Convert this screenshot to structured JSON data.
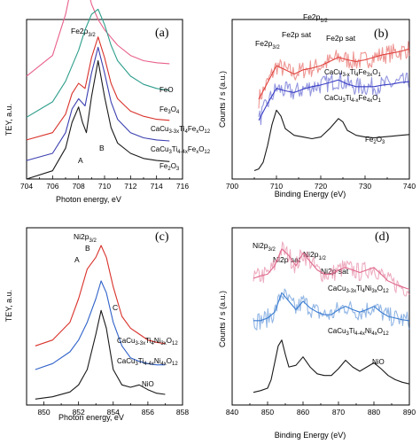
{
  "chart_data": [
    {
      "panel": "(a)",
      "type": "line",
      "title": "Fe2p3/2",
      "xlabel": "Photon energy, eV",
      "ylabel": "TEY, a.u.",
      "xlim": [
        704,
        716
      ],
      "xticks": [
        704,
        706,
        708,
        710,
        712,
        714,
        716
      ],
      "annotations": [
        "A",
        "B"
      ],
      "series": [
        {
          "name": "FeO",
          "color": "#e8608a",
          "x": [
            704,
            706,
            707,
            707.5,
            708,
            708.5,
            709,
            709.5,
            710,
            711,
            712,
            713,
            714,
            715
          ],
          "y": [
            0.25,
            0.45,
            0.85,
            1.15,
            1.35,
            1.2,
            0.95,
            0.8,
            0.7,
            0.55,
            0.45,
            0.4,
            0.38,
            0.37
          ]
        },
        {
          "name": "Fe3O4",
          "color": "#2e9e8c",
          "x": [
            704,
            706,
            707,
            708,
            708.5,
            709,
            709.5,
            710,
            710.5,
            711,
            712,
            713,
            714,
            715
          ],
          "y": [
            0.1,
            0.25,
            0.45,
            0.75,
            0.95,
            1.1,
            1.15,
            1.0,
            0.8,
            0.65,
            0.5,
            0.42,
            0.38,
            0.36
          ]
        },
        {
          "name": "CaCu3-3xTi4FexO12",
          "color": "#d9312a",
          "x": [
            704,
            706,
            707,
            707.5,
            708,
            708.5,
            709,
            709.5,
            710,
            710.5,
            711,
            712,
            713,
            714,
            715
          ],
          "y": [
            0.05,
            0.12,
            0.3,
            0.5,
            0.6,
            0.55,
            0.85,
            1.05,
            0.85,
            0.6,
            0.45,
            0.33,
            0.28,
            0.25,
            0.24
          ]
        },
        {
          "name": "CaCu3Ti4-4xFexO12",
          "color": "#3b3fb0",
          "x": [
            704,
            706,
            707,
            707.5,
            708,
            708.5,
            709,
            709.5,
            710,
            710.5,
            711,
            712,
            713,
            714,
            715
          ],
          "y": [
            0.05,
            0.12,
            0.32,
            0.55,
            0.65,
            0.58,
            0.9,
            1.15,
            0.9,
            0.62,
            0.45,
            0.32,
            0.27,
            0.25,
            0.24
          ]
        },
        {
          "name": "Fe2O3",
          "color": "#1a1a1a",
          "x": [
            704,
            706,
            707,
            707.5,
            708,
            708.3,
            708.6,
            709,
            709.5,
            710,
            710.5,
            711,
            712,
            713,
            714,
            715
          ],
          "y": [
            0.0,
            0.08,
            0.3,
            0.55,
            0.7,
            0.55,
            0.45,
            0.8,
            1.15,
            0.8,
            0.5,
            0.35,
            0.25,
            0.2,
            0.18,
            0.17
          ]
        }
      ]
    },
    {
      "panel": "(b)",
      "type": "line",
      "xlabel": "Binding Energy (eV)",
      "ylabel": "Counts / s (a.u.)",
      "xlim": [
        700,
        740
      ],
      "xticks": [
        700,
        710,
        720,
        730,
        740
      ],
      "annotations": [
        "Fe2p3/2",
        "Fe2p sat",
        "Fe2p1/2",
        "Fe2p sat"
      ],
      "series": [
        {
          "name": "CaCu3-xTi4Fe3xO1",
          "color": "#e0413c",
          "x": [
            706,
            708,
            710,
            712,
            714,
            716,
            718,
            720,
            722,
            724,
            726,
            728,
            730,
            732,
            734,
            736,
            738,
            740
          ],
          "y": [
            0.85,
            1.05,
            1.25,
            1.2,
            1.15,
            1.2,
            1.22,
            1.25,
            1.3,
            1.35,
            1.32,
            1.3,
            1.32,
            1.35,
            1.38,
            1.4,
            1.42,
            1.45
          ]
        },
        {
          "name": "CaCu3Ti4-xFe4xO1",
          "color": "#3a3fc4",
          "x": [
            706,
            708,
            710,
            712,
            714,
            716,
            718,
            720,
            722,
            724,
            726,
            728,
            730,
            732,
            734,
            736,
            738,
            740
          ],
          "y": [
            0.6,
            0.8,
            0.98,
            0.95,
            0.93,
            0.97,
            1.0,
            1.02,
            1.05,
            1.08,
            1.03,
            1.0,
            1.0,
            1.0,
            1.02,
            1.03,
            1.05,
            1.06
          ]
        },
        {
          "name": "Fe2O3",
          "color": "#1a1a1a",
          "x": [
            705,
            706,
            707,
            708,
            709,
            710,
            711,
            712,
            714,
            716,
            718,
            720,
            722,
            724,
            725,
            726,
            728,
            730,
            732,
            734,
            736,
            738,
            740
          ],
          "y": [
            0.0,
            0.02,
            0.1,
            0.3,
            0.55,
            0.72,
            0.65,
            0.5,
            0.42,
            0.4,
            0.38,
            0.4,
            0.5,
            0.62,
            0.58,
            0.48,
            0.42,
            0.4,
            0.39,
            0.4,
            0.41,
            0.42,
            0.43
          ]
        }
      ]
    },
    {
      "panel": "(c)",
      "type": "line",
      "title": "Ni2p3/2",
      "xlabel": "Photon energy, eV",
      "ylabel": "TEY, a.u.",
      "xlim": [
        849,
        858
      ],
      "xticks": [
        850,
        852,
        854,
        856,
        858
      ],
      "annotations": [
        "A",
        "B",
        "C"
      ],
      "series": [
        {
          "name": "CaCu3-3xTi4Ni3xO12",
          "color": "#d9312a",
          "x": [
            849.5,
            850.5,
            851.5,
            852,
            852.5,
            853,
            853.3,
            853.6,
            854,
            854.5,
            855,
            855.5,
            856,
            856.5,
            857
          ],
          "y": [
            0.35,
            0.4,
            0.55,
            0.75,
            1.0,
            1.1,
            1.2,
            1.1,
            0.85,
            0.6,
            0.5,
            0.45,
            0.4,
            0.38,
            0.37
          ]
        },
        {
          "name": "CaCu3Ti4-4xNi4xO12",
          "color": "#2f62c9",
          "x": [
            849.5,
            850.5,
            851.5,
            852,
            852.5,
            853,
            853.3,
            853.6,
            854,
            854.5,
            855,
            855.5,
            856,
            856.5,
            857
          ],
          "y": [
            0.2,
            0.25,
            0.35,
            0.45,
            0.6,
            0.8,
            0.95,
            0.85,
            0.6,
            0.4,
            0.3,
            0.27,
            0.25,
            0.24,
            0.24
          ]
        },
        {
          "name": "NiO",
          "color": "#1a1a1a",
          "x": [
            849.5,
            850.5,
            851.5,
            852,
            852.5,
            853,
            853.3,
            853.6,
            854,
            854.5,
            855,
            855.5,
            856,
            856.5,
            857
          ],
          "y": [
            0.0,
            0.02,
            0.06,
            0.12,
            0.25,
            0.55,
            0.75,
            0.6,
            0.25,
            0.12,
            0.1,
            0.12,
            0.08,
            0.05,
            0.04
          ]
        }
      ]
    },
    {
      "panel": "(d)",
      "type": "line",
      "xlabel": "Binding Energy (eV)",
      "ylabel": "Counts / s (a.u.)",
      "xlim": [
        840,
        890
      ],
      "xticks": [
        840,
        850,
        860,
        870,
        880,
        890
      ],
      "annotations": [
        "Ni2p3/2",
        "Ni2p sat",
        "Ni2p1/2",
        "Ni2p sat"
      ],
      "series": [
        {
          "name": "CaCu3-3xTi4Ni3xO12",
          "color": "#e06a8e",
          "x": [
            846,
            848,
            850,
            852,
            854,
            856,
            858,
            860,
            862,
            864,
            866,
            868,
            870,
            872,
            874,
            876,
            878,
            880,
            882,
            884,
            886,
            888,
            890
          ],
          "y": [
            1.35,
            1.38,
            1.4,
            1.5,
            1.7,
            1.62,
            1.5,
            1.65,
            1.55,
            1.45,
            1.4,
            1.4,
            1.45,
            1.48,
            1.45,
            1.42,
            1.45,
            1.48,
            1.4,
            1.32,
            1.28,
            1.25,
            1.22
          ]
        },
        {
          "name": "CaCu3Ti4-4xNi4xO12",
          "color": "#3a7cd0",
          "x": [
            846,
            848,
            850,
            852,
            854,
            856,
            858,
            860,
            862,
            864,
            866,
            868,
            870,
            872,
            874,
            876,
            878,
            880,
            882,
            884,
            886,
            888,
            890
          ],
          "y": [
            0.85,
            0.85,
            0.88,
            0.95,
            1.18,
            1.08,
            0.98,
            1.08,
            1.0,
            0.95,
            0.92,
            0.92,
            0.98,
            1.02,
            0.98,
            0.95,
            0.98,
            1.02,
            0.95,
            0.9,
            0.88,
            0.86,
            0.85
          ]
        },
        {
          "name": "NiO",
          "color": "#1a1a1a",
          "x": [
            846,
            848,
            850,
            851,
            852,
            853,
            854,
            855,
            856,
            858,
            860,
            862,
            864,
            866,
            868,
            870,
            872,
            874,
            876,
            878,
            880,
            882,
            884,
            886,
            888,
            890
          ],
          "y": [
            0.0,
            0.02,
            0.05,
            0.15,
            0.35,
            0.55,
            0.62,
            0.45,
            0.3,
            0.32,
            0.42,
            0.3,
            0.22,
            0.2,
            0.2,
            0.28,
            0.38,
            0.3,
            0.25,
            0.3,
            0.35,
            0.28,
            0.2,
            0.15,
            0.12,
            0.1
          ]
        }
      ]
    }
  ]
}
